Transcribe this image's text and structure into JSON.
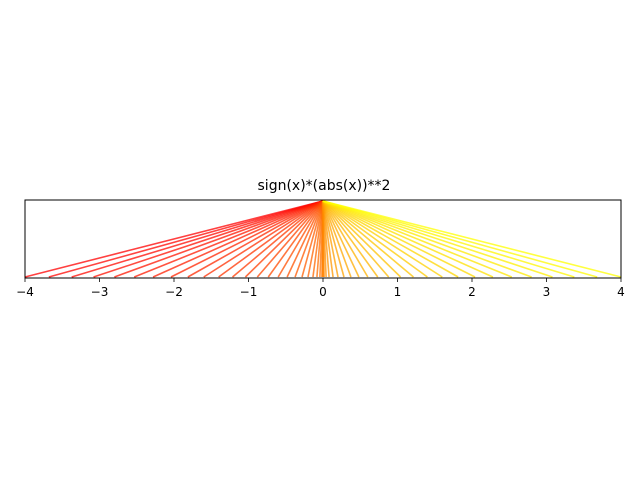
{
  "chart_data": {
    "type": "line",
    "title": "sign(x)*(abs(x))**2",
    "xlabel": "",
    "ylabel": "",
    "xlim": [
      -4,
      4
    ],
    "ylim": [
      0,
      1
    ],
    "yticks_visible": false,
    "grid": false,
    "xticks": [
      -4,
      -3,
      -2,
      -1,
      0,
      1,
      2,
      3,
      4
    ],
    "xtick_labels": [
      "−4",
      "−3",
      "−2",
      "−1",
      "0",
      "1",
      "2",
      "3",
      "4"
    ],
    "line_count": 50,
    "line_formula": "each line runs from (x, 0) to (0, 1); a fan of lines converging at the top centre",
    "x_samples": "x = sign(t)*|t|^2 for 50 evenly spaced t in [-2, 2]",
    "color_map": "autumn",
    "color_start": "#ff0000",
    "color_end": "#ffff00",
    "line_alpha": 0.75
  }
}
